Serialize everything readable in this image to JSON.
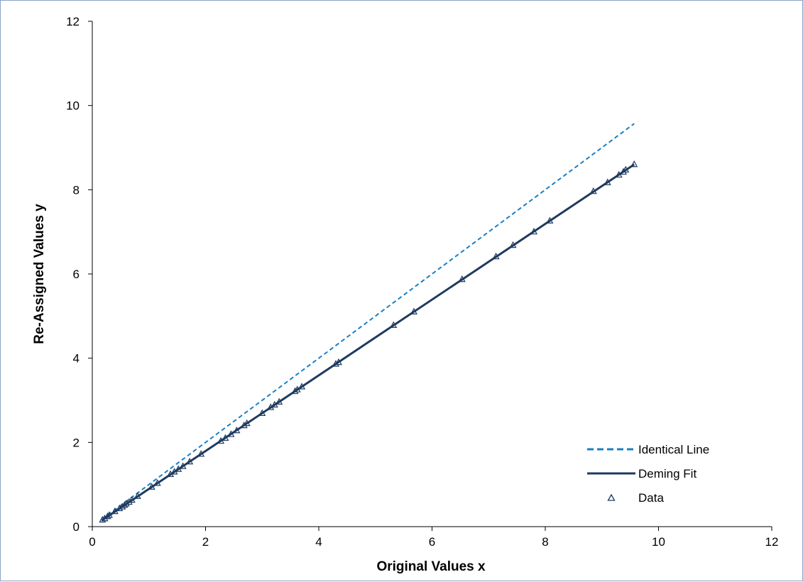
{
  "chart_data": {
    "type": "scatter",
    "xlabel": "Original Values x",
    "ylabel": "Re-Assigned Values y",
    "xlim": [
      0,
      12
    ],
    "ylim": [
      0,
      12
    ],
    "xticks": [
      "0",
      "2",
      "4",
      "6",
      "8",
      "10",
      "12"
    ],
    "yticks": [
      "0",
      "2",
      "4",
      "6",
      "8",
      "10",
      "12"
    ],
    "grid": false,
    "legend_position": "bottom-right",
    "legend": [
      "Identical Line",
      "Deming Fit",
      "Data"
    ],
    "series": [
      {
        "name": "Identical Line",
        "kind": "line",
        "style": "dashed",
        "color": "#1a7fc4",
        "x": [
          0.17,
          9.57
        ],
        "y": [
          0.17,
          9.57
        ]
      },
      {
        "name": "Deming Fit",
        "kind": "line",
        "style": "solid",
        "color": "#1f3a5f",
        "x": [
          0.17,
          9.57
        ],
        "y": [
          0.15,
          8.6
        ]
      },
      {
        "name": "Data",
        "kind": "scatter",
        "marker": "triangle",
        "color": "#1f3a5f",
        "x": [
          0.18,
          0.22,
          0.27,
          0.3,
          0.4,
          0.48,
          0.53,
          0.57,
          0.6,
          0.65,
          0.7,
          0.8,
          1.05,
          1.15,
          1.38,
          1.45,
          1.52,
          1.6,
          1.72,
          1.92,
          2.27,
          2.35,
          2.45,
          2.55,
          2.68,
          2.73,
          3.0,
          3.15,
          3.22,
          3.3,
          3.58,
          3.62,
          3.7,
          4.3,
          4.35,
          5.32,
          5.68,
          6.53,
          7.13,
          7.43,
          7.8,
          8.08,
          8.85,
          9.1,
          9.3,
          9.38,
          9.42,
          9.57
        ],
        "y": [
          0.16,
          0.19,
          0.24,
          0.27,
          0.36,
          0.43,
          0.47,
          0.51,
          0.54,
          0.58,
          0.63,
          0.72,
          0.94,
          1.03,
          1.24,
          1.3,
          1.36,
          1.43,
          1.54,
          1.72,
          2.03,
          2.1,
          2.19,
          2.28,
          2.4,
          2.45,
          2.69,
          2.83,
          2.89,
          2.96,
          3.21,
          3.25,
          3.32,
          3.86,
          3.9,
          4.78,
          5.1,
          5.87,
          6.41,
          6.68,
          7.0,
          7.26,
          7.96,
          8.17,
          8.35,
          8.42,
          8.47,
          8.6
        ]
      }
    ]
  }
}
